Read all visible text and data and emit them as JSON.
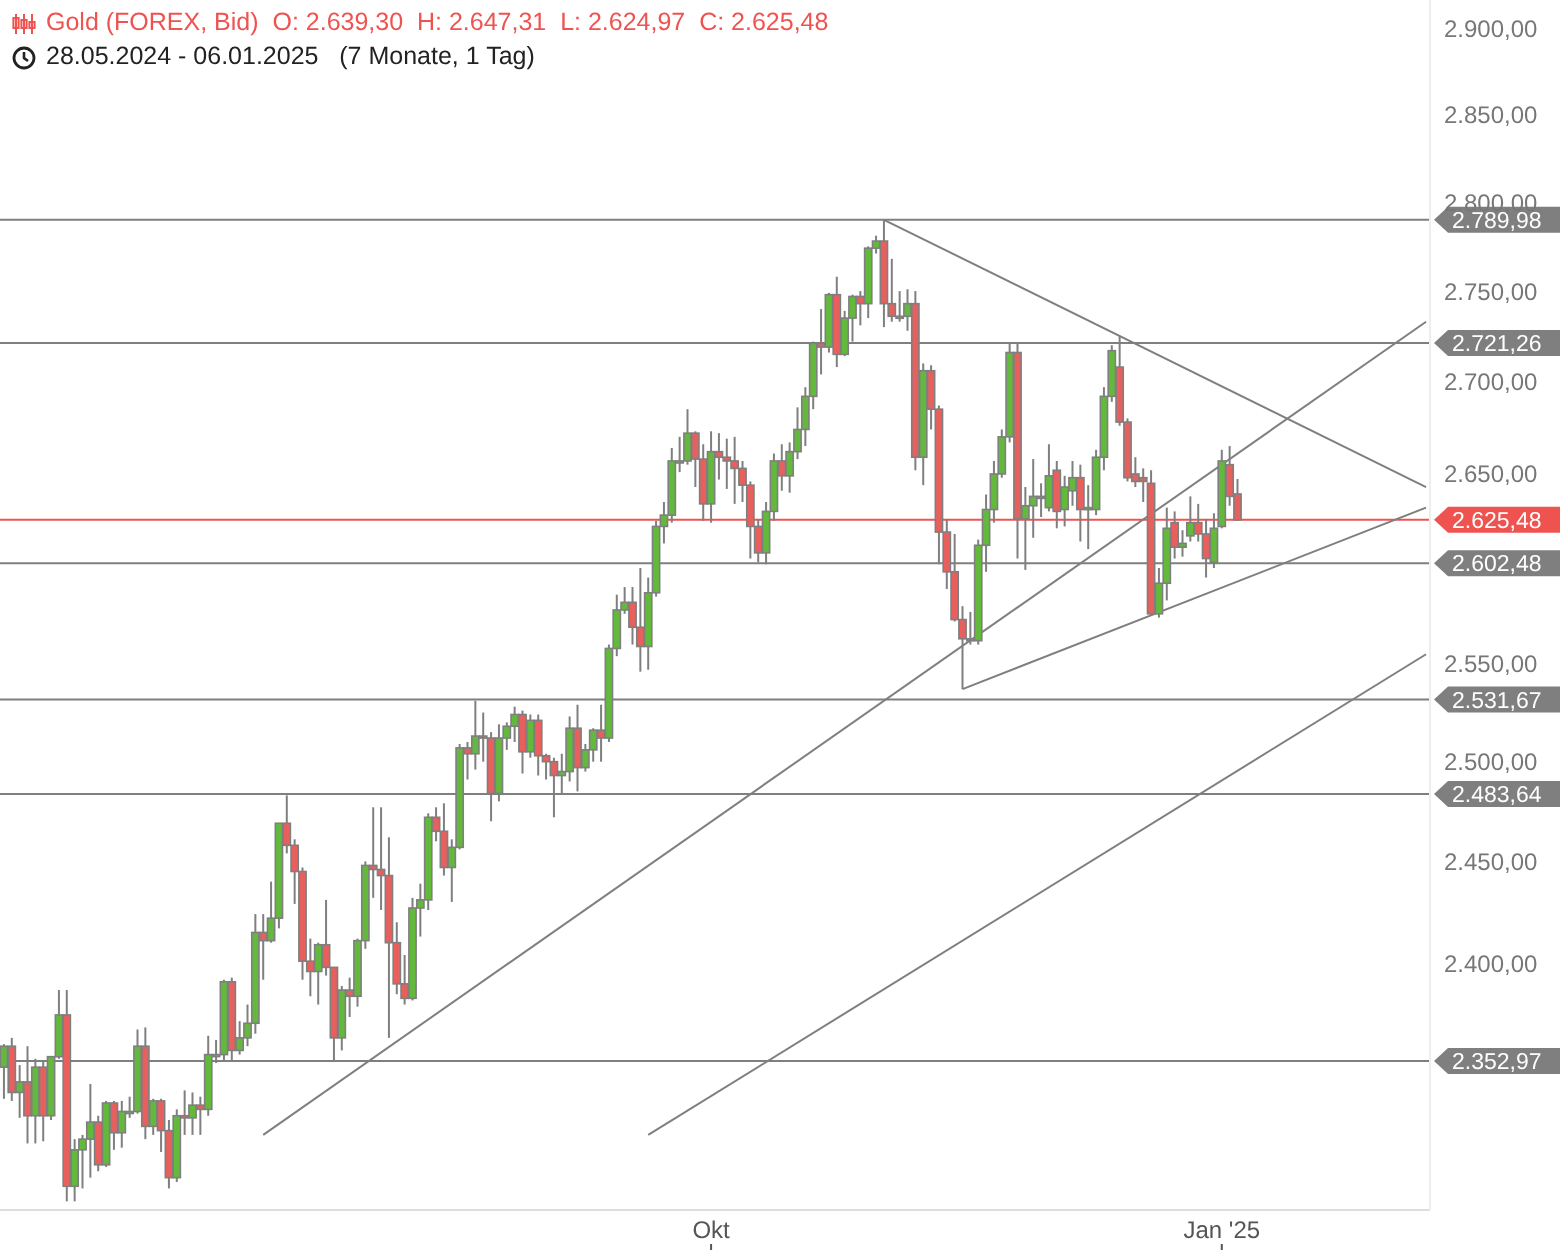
{
  "chart_data": {
    "type": "candlestick",
    "title": "Gold (FOREX, Bid)  O: 2.639,30  H: 2.647,31  L: 2.624,97  C: 2.625,48",
    "subtitle": "28.05.2024 - 06.01.2025   (7 Monate, 1 Tag)",
    "log": "y",
    "grid": false,
    "categories": [
      null,
      null,
      null,
      null,
      null,
      null,
      null,
      null,
      null,
      null,
      null,
      null,
      null,
      null,
      null,
      null,
      null,
      null,
      null,
      null,
      null,
      null,
      null,
      null,
      null,
      null,
      null,
      null,
      null,
      null,
      null,
      null,
      null,
      null,
      null,
      null,
      null,
      null,
      null,
      null,
      null,
      null,
      null,
      null,
      null,
      null,
      null,
      null,
      null,
      null,
      null,
      null,
      null,
      null,
      null,
      null,
      null,
      null,
      null,
      null,
      null,
      null,
      null,
      null,
      null,
      null,
      null,
      null,
      null,
      null,
      null,
      null,
      null,
      null,
      null,
      null,
      null,
      null,
      null,
      null,
      null,
      null,
      null,
      null,
      null,
      null,
      null,
      null,
      null,
      null,
      "Okt",
      null,
      null,
      null,
      null,
      null,
      null,
      null,
      null,
      null,
      null,
      null,
      null,
      null,
      null,
      null,
      null,
      null,
      null,
      null,
      null,
      null,
      null,
      null,
      null,
      null,
      null,
      null,
      null,
      null,
      null,
      null,
      null,
      null,
      null,
      null,
      null,
      null,
      null,
      null,
      null,
      null,
      null,
      null,
      null,
      null,
      null,
      null,
      null,
      null,
      null,
      null,
      null,
      null,
      null,
      null,
      null,
      null,
      null,
      null,
      null,
      null,
      null,
      null,
      null,
      "Jan '25",
      null,
      null,
      null,
      null,
      null,
      null,
      null,
      null,
      null,
      null,
      null,
      null,
      null,
      null,
      null,
      null,
      null,
      null,
      null,
      null,
      null,
      null,
      null,
      null,
      null,
      null
    ],
    "ylim": [
      2283,
      2917
    ],
    "yticks": [
      {
        "value": 2400,
        "label": "2.400,00"
      },
      {
        "value": 2450,
        "label": "2.450,00"
      },
      {
        "value": 2500,
        "label": "2.500,00"
      },
      {
        "value": 2550,
        "label": "2.550,00"
      },
      {
        "value": 2650,
        "label": "2.650,00"
      },
      {
        "value": 2700,
        "label": "2.700,00"
      },
      {
        "value": 2750,
        "label": "2.750,00"
      },
      {
        "value": 2800,
        "label": "2.800,00"
      },
      {
        "value": 2850,
        "label": "2.850,00"
      },
      {
        "value": 2900,
        "label": "2.900,00"
      }
    ],
    "ref_lines": [
      {
        "axis": "y",
        "value": 2789.98,
        "label": "2.789,98",
        "color": "#7f7f7f"
      },
      {
        "axis": "y",
        "value": 2721.26,
        "label": "2.721,26",
        "color": "#7f7f7f"
      },
      {
        "axis": "y",
        "value": 2625.48,
        "label": "2.625,48",
        "color": "#ef5350"
      },
      {
        "axis": "y",
        "value": 2602.48,
        "label": "2.602,48",
        "color": "#7f7f7f"
      },
      {
        "axis": "y",
        "value": 2531.67,
        "label": "2.531,67",
        "color": "#7f7f7f"
      },
      {
        "axis": "y",
        "value": 2483.64,
        "label": "2.483,64",
        "color": "#7f7f7f"
      },
      {
        "axis": "y",
        "value": 2352.97,
        "label": "2.352,97",
        "color": "#7f7f7f"
      }
    ],
    "series": [
      {
        "type": "candlestick",
        "color": "#7f7f7f",
        "ohlc": [
          [
            2350,
            2361,
            2335,
            2360
          ],
          [
            2360,
            2364,
            2334,
            2338
          ],
          [
            2338,
            2351,
            2326,
            2343
          ],
          [
            2343,
            2360,
            2314,
            2327
          ],
          [
            2327,
            2354,
            2314,
            2350
          ],
          [
            2350,
            2353,
            2315,
            2327
          ],
          [
            2327,
            2355,
            2325,
            2355
          ],
          [
            2355,
            2387,
            2354,
            2375
          ],
          [
            2375,
            2387,
            2287,
            2294
          ],
          [
            2294,
            2316,
            2287,
            2311
          ],
          [
            2311,
            2318,
            2293,
            2316
          ],
          [
            2316,
            2342,
            2298,
            2324
          ],
          [
            2324,
            2327,
            2301,
            2304
          ],
          [
            2304,
            2334,
            2303,
            2333
          ],
          [
            2333,
            2334,
            2311,
            2319
          ],
          [
            2319,
            2334,
            2312,
            2329
          ],
          [
            2329,
            2336,
            2326,
            2329
          ],
          [
            2329,
            2368,
            2328,
            2360
          ],
          [
            2360,
            2369,
            2316,
            2322
          ],
          [
            2322,
            2335,
            2318,
            2334
          ],
          [
            2334,
            2335,
            2310,
            2320
          ],
          [
            2320,
            2325,
            2293,
            2298
          ],
          [
            2298,
            2330,
            2296,
            2327
          ],
          [
            2327,
            2339,
            2318,
            2326
          ],
          [
            2326,
            2338,
            2318,
            2332
          ],
          [
            2332,
            2336,
            2318,
            2330
          ],
          [
            2330,
            2365,
            2327,
            2356
          ],
          [
            2356,
            2363,
            2352,
            2356
          ],
          [
            2356,
            2392,
            2353,
            2391
          ],
          [
            2391,
            2393,
            2353,
            2358
          ],
          [
            2358,
            2372,
            2356,
            2364
          ],
          [
            2364,
            2380,
            2360,
            2371
          ],
          [
            2371,
            2424,
            2366,
            2415
          ],
          [
            2415,
            2424,
            2392,
            2411
          ],
          [
            2411,
            2440,
            2410,
            2422
          ],
          [
            2422,
            2469,
            2417,
            2469
          ],
          [
            2469,
            2483,
            2454,
            2458
          ],
          [
            2458,
            2461,
            2429,
            2445
          ],
          [
            2445,
            2447,
            2392,
            2401
          ],
          [
            2401,
            2412,
            2384,
            2396
          ],
          [
            2396,
            2410,
            2380,
            2409
          ],
          [
            2409,
            2431,
            2394,
            2398
          ],
          [
            2398,
            2398,
            2353,
            2364
          ],
          [
            2364,
            2389,
            2358,
            2387
          ],
          [
            2387,
            2393,
            2374,
            2384
          ],
          [
            2384,
            2412,
            2379,
            2411
          ],
          [
            2411,
            2450,
            2407,
            2448
          ],
          [
            2448,
            2477,
            2432,
            2446
          ],
          [
            2446,
            2477,
            2426,
            2443
          ],
          [
            2443,
            2462,
            2364,
            2410
          ],
          [
            2410,
            2420,
            2385,
            2390
          ],
          [
            2390,
            2404,
            2380,
            2383
          ],
          [
            2383,
            2432,
            2382,
            2427
          ],
          [
            2427,
            2439,
            2413,
            2431
          ],
          [
            2431,
            2474,
            2426,
            2472
          ],
          [
            2472,
            2477,
            2460,
            2465
          ],
          [
            2465,
            2479,
            2443,
            2447
          ],
          [
            2447,
            2461,
            2430,
            2457
          ],
          [
            2457,
            2509,
            2456,
            2507
          ],
          [
            2507,
            2510,
            2491,
            2504
          ],
          [
            2504,
            2531,
            2496,
            2513
          ],
          [
            2513,
            2525,
            2500,
            2512
          ],
          [
            2512,
            2515,
            2470,
            2484
          ],
          [
            2484,
            2519,
            2480,
            2512
          ],
          [
            2512,
            2520,
            2506,
            2518
          ],
          [
            2518,
            2528,
            2510,
            2524
          ],
          [
            2524,
            2526,
            2494,
            2505
          ],
          [
            2505,
            2524,
            2502,
            2521
          ],
          [
            2521,
            2524,
            2493,
            2503
          ],
          [
            2503,
            2504,
            2491,
            2500
          ],
          [
            2500,
            2502,
            2472,
            2493
          ],
          [
            2493,
            2504,
            2484,
            2495
          ],
          [
            2495,
            2523,
            2490,
            2517
          ],
          [
            2517,
            2529,
            2485,
            2497
          ],
          [
            2497,
            2509,
            2495,
            2506
          ],
          [
            2506,
            2517,
            2500,
            2516
          ],
          [
            2516,
            2529,
            2500,
            2512
          ],
          [
            2512,
            2560,
            2510,
            2558
          ],
          [
            2558,
            2586,
            2554,
            2578
          ],
          [
            2578,
            2590,
            2576,
            2582
          ],
          [
            2582,
            2590,
            2560,
            2569
          ],
          [
            2569,
            2600,
            2546,
            2559
          ],
          [
            2559,
            2595,
            2547,
            2587
          ],
          [
            2587,
            2625,
            2585,
            2622
          ],
          [
            2622,
            2635,
            2613,
            2628
          ],
          [
            2628,
            2664,
            2624,
            2657
          ],
          [
            2657,
            2670,
            2651,
            2657
          ],
          [
            2657,
            2685,
            2655,
            2672
          ],
          [
            2672,
            2673,
            2643,
            2658
          ],
          [
            2658,
            2666,
            2625,
            2634
          ],
          [
            2634,
            2673,
            2624,
            2662
          ],
          [
            2662,
            2672,
            2647,
            2659
          ],
          [
            2659,
            2669,
            2642,
            2657
          ],
          [
            2657,
            2670,
            2634,
            2653
          ],
          [
            2653,
            2657,
            2635,
            2644
          ],
          [
            2644,
            2646,
            2605,
            2622
          ],
          [
            2622,
            2626,
            2603,
            2608
          ],
          [
            2608,
            2635,
            2602,
            2630
          ],
          [
            2630,
            2661,
            2625,
            2657
          ],
          [
            2657,
            2666,
            2641,
            2649
          ],
          [
            2649,
            2667,
            2640,
            2662
          ],
          [
            2662,
            2686,
            2658,
            2674
          ],
          [
            2674,
            2697,
            2665,
            2692
          ],
          [
            2692,
            2722,
            2685,
            2721
          ],
          [
            2721,
            2740,
            2704,
            2719
          ],
          [
            2719,
            2749,
            2716,
            2748
          ],
          [
            2748,
            2758,
            2708,
            2715
          ],
          [
            2715,
            2739,
            2714,
            2735
          ],
          [
            2735,
            2748,
            2722,
            2747
          ],
          [
            2747,
            2750,
            2731,
            2743
          ],
          [
            2743,
            2775,
            2735,
            2774
          ],
          [
            2774,
            2781,
            2771,
            2778
          ],
          [
            2778,
            2790,
            2730,
            2743
          ],
          [
            2743,
            2768,
            2733,
            2736
          ],
          [
            2736,
            2750,
            2733,
            2736
          ],
          [
            2736,
            2751,
            2728,
            2743
          ],
          [
            2743,
            2750,
            2652,
            2659
          ],
          [
            2659,
            2710,
            2644,
            2706
          ],
          [
            2706,
            2709,
            2674,
            2685
          ],
          [
            2685,
            2687,
            2602,
            2619
          ],
          [
            2619,
            2626,
            2589,
            2598
          ],
          [
            2598,
            2618,
            2572,
            2573
          ],
          [
            2573,
            2580,
            2537,
            2563
          ],
          [
            2563,
            2577,
            2560,
            2562
          ],
          [
            2562,
            2615,
            2560,
            2612
          ],
          [
            2612,
            2639,
            2598,
            2631
          ],
          [
            2631,
            2657,
            2624,
            2650
          ],
          [
            2650,
            2674,
            2648,
            2670
          ],
          [
            2670,
            2721,
            2667,
            2716
          ],
          [
            2716,
            2721,
            2605,
            2626
          ],
          [
            2626,
            2643,
            2599,
            2633
          ],
          [
            2633,
            2658,
            2616,
            2638
          ],
          [
            2638,
            2645,
            2627,
            2638
          ],
          [
            2632,
            2666,
            2630,
            2649
          ],
          [
            2652,
            2657,
            2621,
            2630
          ],
          [
            2631,
            2649,
            2622,
            2643
          ],
          [
            2641,
            2657,
            2633,
            2648
          ],
          [
            2648,
            2655,
            2614,
            2631
          ],
          [
            2631,
            2644,
            2610,
            2632
          ],
          [
            2631,
            2663,
            2628,
            2659
          ],
          [
            2659,
            2697,
            2652,
            2692
          ],
          [
            2692,
            2720,
            2689,
            2717
          ],
          [
            2708,
            2725,
            2676,
            2678
          ],
          [
            2678,
            2680,
            2646,
            2648
          ],
          [
            2650,
            2659,
            2643,
            2646
          ],
          [
            2648,
            2653,
            2635,
            2646
          ],
          [
            2645,
            2652,
            2575,
            2576
          ],
          [
            2576,
            2600,
            2574,
            2592
          ],
          [
            2592,
            2632,
            2583,
            2621
          ],
          [
            2624,
            2630,
            2605,
            2611
          ],
          [
            2611,
            2620,
            2606,
            2613
          ],
          [
            2617,
            2638,
            2614,
            2624
          ],
          [
            2624,
            2634,
            2614,
            2618
          ],
          [
            2618,
            2626,
            2595,
            2605
          ],
          [
            2603,
            2629,
            2600,
            2621
          ],
          [
            2622,
            2663,
            2621,
            2657
          ],
          [
            2655,
            2665,
            2633,
            2638
          ],
          [
            2639.3,
            2647.31,
            2624.97,
            2625.48
          ],
          null,
          null,
          null,
          null,
          null,
          null,
          null,
          null,
          null,
          null,
          null,
          null,
          null,
          null,
          null,
          null,
          null,
          null,
          null,
          null,
          null,
          null,
          null,
          null
        ]
      },
      {
        "type": "line",
        "color": "#7f7f7f",
        "values": [
          null,
          null,
          null,
          null,
          null,
          null,
          null,
          null,
          null,
          null,
          null,
          null,
          null,
          null,
          null,
          null,
          null,
          null,
          null,
          null,
          null,
          null,
          null,
          null,
          null,
          null,
          null,
          null,
          null,
          null,
          null,
          null,
          null,
          null,
          null,
          null,
          null,
          null,
          null,
          null,
          null,
          null,
          null,
          null,
          null,
          null,
          null,
          null,
          null,
          null,
          null,
          null,
          null,
          null,
          null,
          null,
          null,
          null,
          null,
          null,
          null,
          null,
          null,
          null,
          null,
          null,
          null,
          null,
          null,
          null,
          null,
          null,
          null,
          null,
          null,
          null,
          null,
          null,
          null,
          null,
          null,
          null,
          null,
          null,
          null,
          null,
          null,
          null,
          null,
          null,
          null,
          null,
          null,
          null,
          null,
          null,
          null,
          null,
          null,
          null,
          null,
          null,
          null,
          null,
          null,
          null,
          null,
          null,
          null,
          null,
          null,
          null,
          2790,
          null,
          null,
          null,
          null,
          null,
          null,
          null,
          null,
          null,
          null,
          null,
          null,
          null,
          null,
          null,
          null,
          null,
          null,
          null,
          null,
          null,
          null,
          null,
          null,
          null,
          null,
          null,
          null,
          null,
          null,
          null,
          null,
          null,
          null,
          null,
          null,
          null,
          null,
          null,
          null,
          null,
          null,
          null,
          null,
          null,
          null,
          null,
          null,
          null,
          null,
          null,
          null,
          null,
          null,
          null,
          null,
          null,
          null,
          null,
          null,
          null,
          null,
          null,
          null,
          null,
          null,
          null,
          null,
          2643
        ]
      },
      {
        "type": "line",
        "color": "#7f7f7f",
        "values": [
          null,
          null,
          null,
          null,
          null,
          null,
          null,
          null,
          null,
          null,
          null,
          null,
          null,
          null,
          null,
          null,
          null,
          null,
          null,
          null,
          null,
          null,
          null,
          null,
          null,
          null,
          null,
          null,
          null,
          null,
          null,
          null,
          null,
          2318,
          null,
          null,
          null,
          null,
          null,
          null,
          null,
          null,
          null,
          null,
          null,
          null,
          null,
          null,
          null,
          null,
          null,
          null,
          null,
          null,
          null,
          null,
          null,
          null,
          null,
          null,
          null,
          null,
          null,
          null,
          null,
          null,
          null,
          null,
          null,
          null,
          null,
          null,
          null,
          null,
          null,
          null,
          null,
          null,
          null,
          null,
          null,
          null,
          null,
          null,
          null,
          null,
          null,
          null,
          null,
          null,
          null,
          null,
          null,
          null,
          null,
          null,
          null,
          null,
          null,
          null,
          null,
          null,
          null,
          null,
          null,
          null,
          null,
          null,
          null,
          null,
          null,
          null,
          null,
          null,
          null,
          null,
          null,
          null,
          null,
          null,
          null,
          null,
          null,
          null,
          null,
          null,
          null,
          null,
          null,
          null,
          null,
          null,
          null,
          null,
          null,
          null,
          null,
          null,
          null,
          null,
          null,
          null,
          null,
          null,
          null,
          null,
          null,
          null,
          null,
          null,
          null,
          null,
          null,
          null,
          null,
          null,
          null,
          null,
          null,
          null,
          null,
          null,
          null,
          null,
          null,
          null,
          null,
          null,
          null,
          null,
          null,
          null,
          null,
          null,
          null,
          null,
          null,
          null,
          null,
          null,
          null,
          2733
        ]
      },
      {
        "type": "line",
        "color": "#7f7f7f",
        "values": [
          null,
          null,
          null,
          null,
          null,
          null,
          null,
          null,
          null,
          null,
          null,
          null,
          null,
          null,
          null,
          null,
          null,
          null,
          null,
          null,
          null,
          null,
          null,
          null,
          null,
          null,
          null,
          null,
          null,
          null,
          null,
          null,
          null,
          null,
          null,
          null,
          null,
          null,
          null,
          null,
          null,
          null,
          null,
          null,
          null,
          null,
          null,
          null,
          null,
          null,
          null,
          null,
          null,
          null,
          null,
          null,
          null,
          null,
          null,
          null,
          null,
          null,
          null,
          null,
          null,
          null,
          null,
          null,
          null,
          null,
          null,
          null,
          null,
          null,
          null,
          null,
          null,
          null,
          null,
          null,
          null,
          null,
          null,
          null,
          null,
          null,
          null,
          null,
          null,
          null,
          null,
          null,
          null,
          null,
          null,
          null,
          null,
          null,
          null,
          null,
          null,
          null,
          null,
          null,
          null,
          null,
          null,
          null,
          null,
          null,
          null,
          null,
          null,
          null,
          null,
          null,
          null,
          null,
          null,
          null,
          null,
          null,
          2537,
          null,
          null,
          null,
          null,
          null,
          null,
          null,
          null,
          null,
          null,
          null,
          null,
          null,
          null,
          null,
          null,
          null,
          null,
          null,
          null,
          null,
          null,
          null,
          null,
          null,
          null,
          null,
          null,
          null,
          null,
          null,
          null,
          null,
          null,
          null,
          null,
          null,
          null,
          null,
          null,
          null,
          null,
          null,
          null,
          null,
          null,
          null,
          null,
          null,
          null,
          null,
          null,
          null,
          null,
          null,
          null,
          null,
          null,
          2632
        ]
      },
      {
        "type": "line",
        "color": "#7f7f7f",
        "values": [
          null,
          null,
          null,
          null,
          null,
          null,
          null,
          null,
          null,
          null,
          null,
          null,
          null,
          null,
          null,
          null,
          null,
          null,
          null,
          null,
          null,
          null,
          null,
          null,
          null,
          null,
          null,
          null,
          null,
          null,
          null,
          null,
          null,
          null,
          null,
          null,
          null,
          null,
          null,
          null,
          null,
          null,
          null,
          null,
          null,
          null,
          null,
          null,
          null,
          null,
          null,
          null,
          null,
          null,
          null,
          null,
          null,
          null,
          null,
          null,
          null,
          null,
          null,
          null,
          null,
          null,
          null,
          null,
          null,
          null,
          null,
          null,
          null,
          null,
          null,
          null,
          null,
          null,
          null,
          null,
          null,
          null,
          2318,
          null,
          null,
          null,
          null,
          null,
          null,
          null,
          null,
          null,
          null,
          null,
          null,
          null,
          null,
          null,
          null,
          null,
          null,
          null,
          null,
          null,
          null,
          null,
          null,
          null,
          null,
          null,
          null,
          null,
          null,
          null,
          null,
          null,
          null,
          null,
          null,
          null,
          null,
          null,
          null,
          null,
          null,
          null,
          null,
          null,
          null,
          null,
          null,
          null,
          null,
          null,
          null,
          null,
          null,
          null,
          null,
          null,
          null,
          null,
          null,
          null,
          null,
          null,
          null,
          null,
          null,
          null,
          null,
          null,
          null,
          null,
          null,
          null,
          null,
          null,
          null,
          null,
          null,
          null,
          null,
          null,
          null,
          null,
          null,
          null,
          null,
          null,
          null,
          null,
          null,
          null,
          null,
          null,
          null,
          null,
          null,
          null,
          null,
          2555
        ]
      }
    ]
  }
}
